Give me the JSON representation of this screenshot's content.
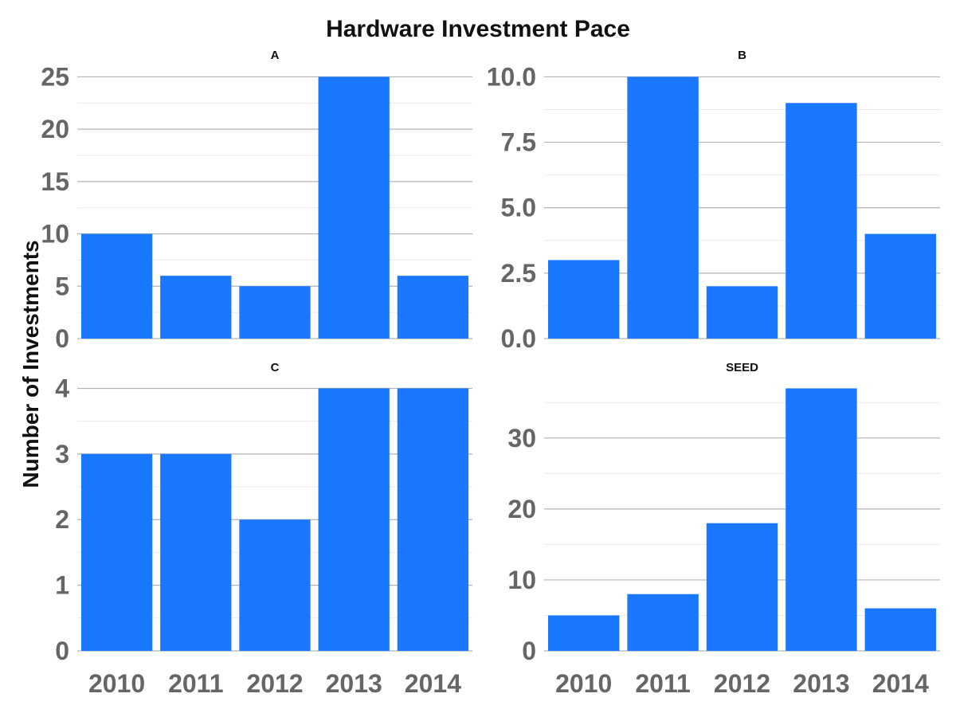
{
  "title": "Hardware Investment Pace",
  "ylabel": "Number of Investments",
  "colors": {
    "bar": "#1a77ff",
    "grid_major": "#b3b3b3",
    "grid_minor": "#ebebeb",
    "tick_text": "#666666"
  },
  "chart_data": [
    {
      "type": "bar",
      "panel": "A",
      "categories": [
        "2010",
        "2011",
        "2012",
        "2013",
        "2014"
      ],
      "values": [
        10,
        6,
        5,
        25,
        6
      ],
      "ylim": [
        0,
        26.25
      ],
      "yticks": [
        0,
        5,
        10,
        15,
        20,
        25
      ],
      "ytick_labels": [
        "0",
        "5",
        "10",
        "15",
        "20",
        "25"
      ],
      "show_xticks": false
    },
    {
      "type": "bar",
      "panel": "B",
      "categories": [
        "2010",
        "2011",
        "2012",
        "2013",
        "2014"
      ],
      "values": [
        3,
        10,
        2,
        9,
        4
      ],
      "ylim": [
        0,
        10.5
      ],
      "yticks": [
        0,
        2.5,
        5,
        7.5,
        10
      ],
      "ytick_labels": [
        "0.0",
        "2.5",
        "5.0",
        "7.5",
        "10.0"
      ],
      "show_xticks": false
    },
    {
      "type": "bar",
      "panel": "C",
      "categories": [
        "2010",
        "2011",
        "2012",
        "2013",
        "2014"
      ],
      "values": [
        3,
        3,
        2,
        4,
        4
      ],
      "ylim": [
        0,
        4.2
      ],
      "yticks": [
        0,
        1,
        2,
        3,
        4
      ],
      "ytick_labels": [
        "0",
        "1",
        "2",
        "3",
        "4"
      ],
      "show_xticks": true
    },
    {
      "type": "bar",
      "panel": "SEED",
      "categories": [
        "2010",
        "2011",
        "2012",
        "2013",
        "2014"
      ],
      "values": [
        5,
        8,
        18,
        37,
        6
      ],
      "ylim": [
        0,
        38.85
      ],
      "yticks": [
        0,
        10,
        20,
        30
      ],
      "ytick_labels": [
        "0",
        "10",
        "20",
        "30"
      ],
      "show_xticks": true
    }
  ]
}
